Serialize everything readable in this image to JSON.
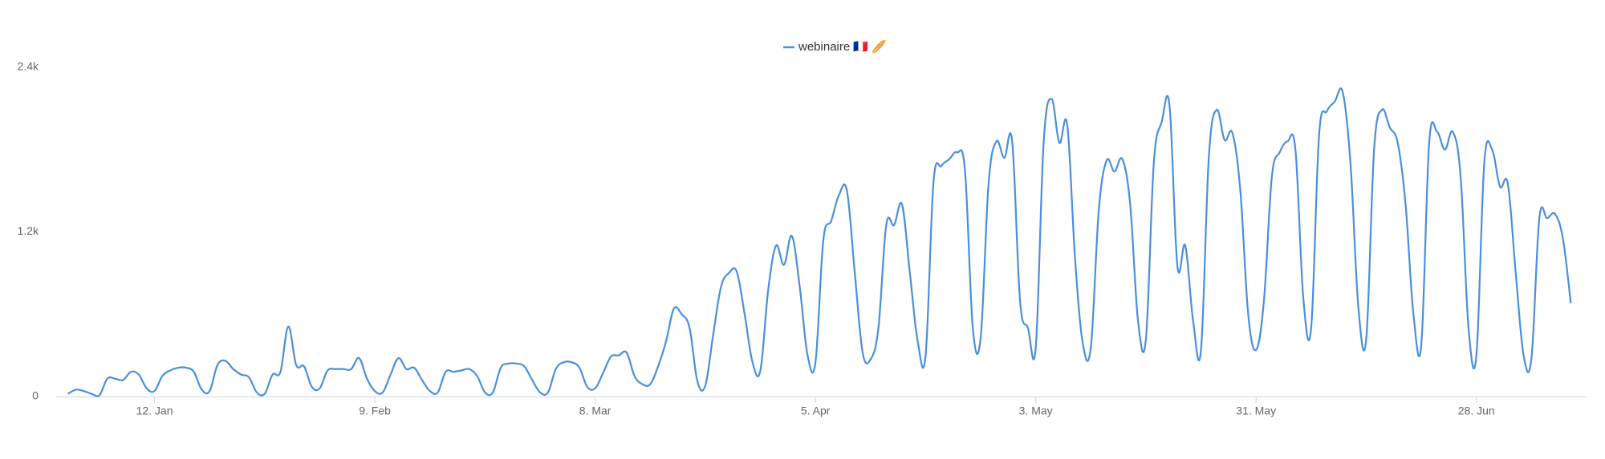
{
  "chart_data": {
    "type": "line",
    "series": [
      {
        "name": "webinaire 🇫🇷 🥖",
        "color": "#4a8fdb",
        "values": [
          20,
          50,
          40,
          20,
          10,
          130,
          130,
          120,
          180,
          160,
          60,
          40,
          150,
          190,
          210,
          210,
          180,
          50,
          40,
          230,
          260,
          200,
          160,
          140,
          30,
          20,
          160,
          180,
          510,
          230,
          220,
          70,
          60,
          190,
          200,
          200,
          200,
          280,
          130,
          40,
          30,
          160,
          280,
          200,
          210,
          120,
          40,
          30,
          180,
          180,
          190,
          200,
          150,
          30,
          30,
          210,
          240,
          240,
          220,
          120,
          30,
          30,
          200,
          250,
          250,
          210,
          70,
          60,
          170,
          290,
          300,
          320,
          150,
          90,
          90,
          220,
          400,
          640,
          600,
          500,
          110,
          80,
          450,
          800,
          900,
          910,
          600,
          250,
          190,
          780,
          1100,
          960,
          1170,
          800,
          300,
          250,
          1140,
          1280,
          1470,
          1500,
          900,
          320,
          270,
          500,
          1250,
          1250,
          1400,
          900,
          400,
          300,
          1560,
          1680,
          1730,
          1780,
          1650,
          500,
          430,
          1550,
          1860,
          1740,
          1860,
          700,
          500,
          360,
          1850,
          2170,
          1850,
          1980,
          1000,
          380,
          360,
          1350,
          1720,
          1640,
          1730,
          1400,
          550,
          420,
          1700,
          2000,
          2120,
          950,
          1100,
          550,
          340,
          1750,
          2090,
          1870,
          1920,
          1500,
          600,
          340,
          700,
          1600,
          1780,
          1860,
          1800,
          720,
          500,
          1900,
          2080,
          2150,
          2220,
          1700,
          650,
          420,
          1800,
          2090,
          1960,
          1850,
          1400,
          600,
          380,
          1850,
          1930,
          1800,
          1930,
          1600,
          500,
          300,
          1700,
          1800,
          1530,
          1550,
          900,
          300,
          280,
          1300,
          1300,
          1330,
          1150,
          680
        ]
      }
    ],
    "x": [
      0,
      1,
      2,
      3,
      4,
      5,
      6,
      7,
      8,
      9,
      10,
      11,
      12,
      13,
      14,
      15,
      16,
      17,
      18,
      19,
      20,
      21,
      22,
      23,
      24,
      25,
      26,
      27,
      28,
      29,
      30,
      31,
      32,
      33,
      34,
      35,
      36,
      37,
      38,
      39,
      40,
      41,
      42,
      43,
      44,
      45,
      46,
      47,
      48,
      49,
      50,
      51,
      52,
      53,
      54,
      55,
      56,
      57,
      58,
      59,
      60,
      61,
      62,
      63,
      64,
      65,
      66,
      67,
      68,
      69,
      70,
      71,
      72,
      73,
      74,
      75,
      76,
      77,
      78,
      79,
      80,
      81,
      82,
      83,
      84,
      85,
      86,
      87,
      88,
      89,
      90,
      91,
      92,
      93,
      94,
      95,
      96,
      97,
      98,
      99,
      100,
      101,
      102,
      103,
      104,
      105,
      106,
      107,
      108,
      109,
      110,
      111,
      112,
      113,
      114,
      115,
      116,
      117,
      118,
      119,
      120,
      121,
      122,
      123,
      124,
      125,
      126,
      127,
      128,
      129,
      130,
      131,
      132,
      133,
      134,
      135,
      136,
      137,
      138,
      139,
      140,
      141,
      142,
      143,
      144,
      145,
      146,
      147,
      148,
      149,
      150,
      151,
      152,
      153,
      154,
      155,
      156,
      157,
      158,
      159,
      160,
      161,
      162,
      163,
      164,
      165,
      166,
      167,
      168,
      169,
      170,
      171,
      172,
      173,
      174,
      175,
      176,
      177,
      178,
      179,
      180,
      181,
      182,
      183,
      184,
      185,
      186,
      187,
      188,
      189,
      190,
      191
    ],
    "xlim": [
      -1.5,
      193
    ],
    "xticks": [
      {
        "value": 11,
        "label": "12. Jan"
      },
      {
        "value": 39,
        "label": "9. Feb"
      },
      {
        "value": 67,
        "label": "8. Mar"
      },
      {
        "value": 95,
        "label": "5. Apr"
      },
      {
        "value": 123,
        "label": "3. May"
      },
      {
        "value": 151,
        "label": "31. May"
      },
      {
        "value": 179,
        "label": "28. Jun"
      }
    ],
    "ylim": [
      0,
      2400
    ],
    "yticks": [
      0,
      {
        "value": 1200,
        "label": "1.2k"
      },
      {
        "value": 2400,
        "label": "2.4k"
      }
    ],
    "grid": false,
    "legend": "top"
  }
}
